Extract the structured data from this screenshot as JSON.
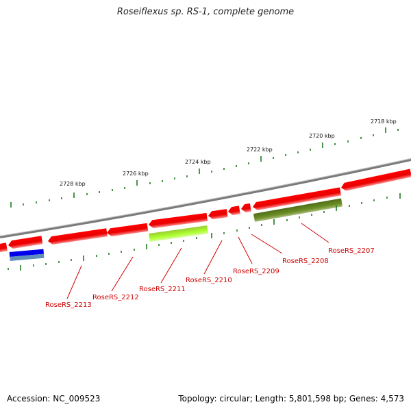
{
  "title": "Roseiflexus sp. RS-1, complete genome",
  "footer": {
    "accession": "Accession: NC_009523",
    "summary": "Topology: circular; Length: 5,801,598 bp; Genes: 4,573"
  },
  "colors": {
    "backbone": "#888888",
    "gene_forward": "#ff0000",
    "tick": "#1e7a1e",
    "label": "#d00000"
  },
  "kbp_labels": [
    "2718 kbp",
    "2720 kbp",
    "2722 kbp",
    "2724 kbp",
    "2726 kbp",
    "2728 kbp"
  ],
  "gene_labels": [
    "RoseRS_2207",
    "RoseRS_2208",
    "RoseRS_2209",
    "RoseRS_2210",
    "RoseRS_2211",
    "RoseRS_2212",
    "RoseRS_2213"
  ]
}
